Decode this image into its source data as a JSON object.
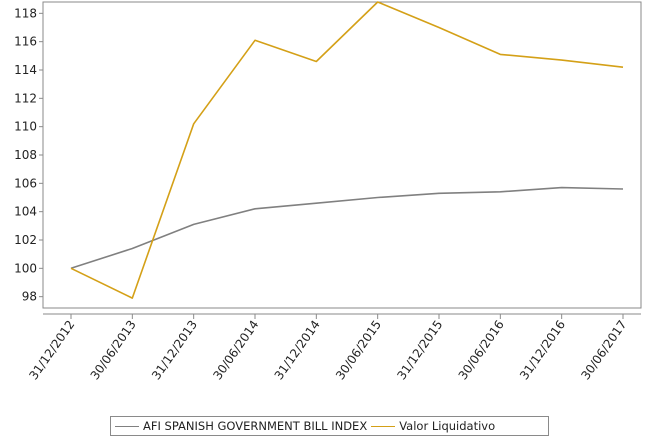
{
  "chart_data": {
    "type": "line",
    "title": "",
    "xlabel": "",
    "ylabel": "",
    "categories": [
      "31/12/2012",
      "30/06/2013",
      "31/12/2013",
      "30/06/2014",
      "31/12/2014",
      "30/06/2015",
      "31/12/2015",
      "30/06/2016",
      "31/12/2016",
      "30/06/2017"
    ],
    "ylim": [
      97.2,
      118.8
    ],
    "yticks": [
      98,
      100,
      102,
      104,
      106,
      108,
      110,
      112,
      114,
      116,
      118
    ],
    "grid": false,
    "legend_position": "bottom",
    "series": [
      {
        "name": "AFI SPANISH GOVERNMENT BILL INDEX",
        "color": "#808080",
        "values": [
          100.0,
          101.4,
          103.1,
          104.2,
          104.6,
          105.0,
          105.3,
          105.4,
          105.7,
          105.6
        ]
      },
      {
        "name": "Valor Liquidativo",
        "color": "#d4a017",
        "values": [
          100.0,
          97.9,
          110.2,
          116.1,
          114.6,
          118.8,
          117.0,
          115.1,
          114.7,
          114.2
        ]
      }
    ]
  }
}
